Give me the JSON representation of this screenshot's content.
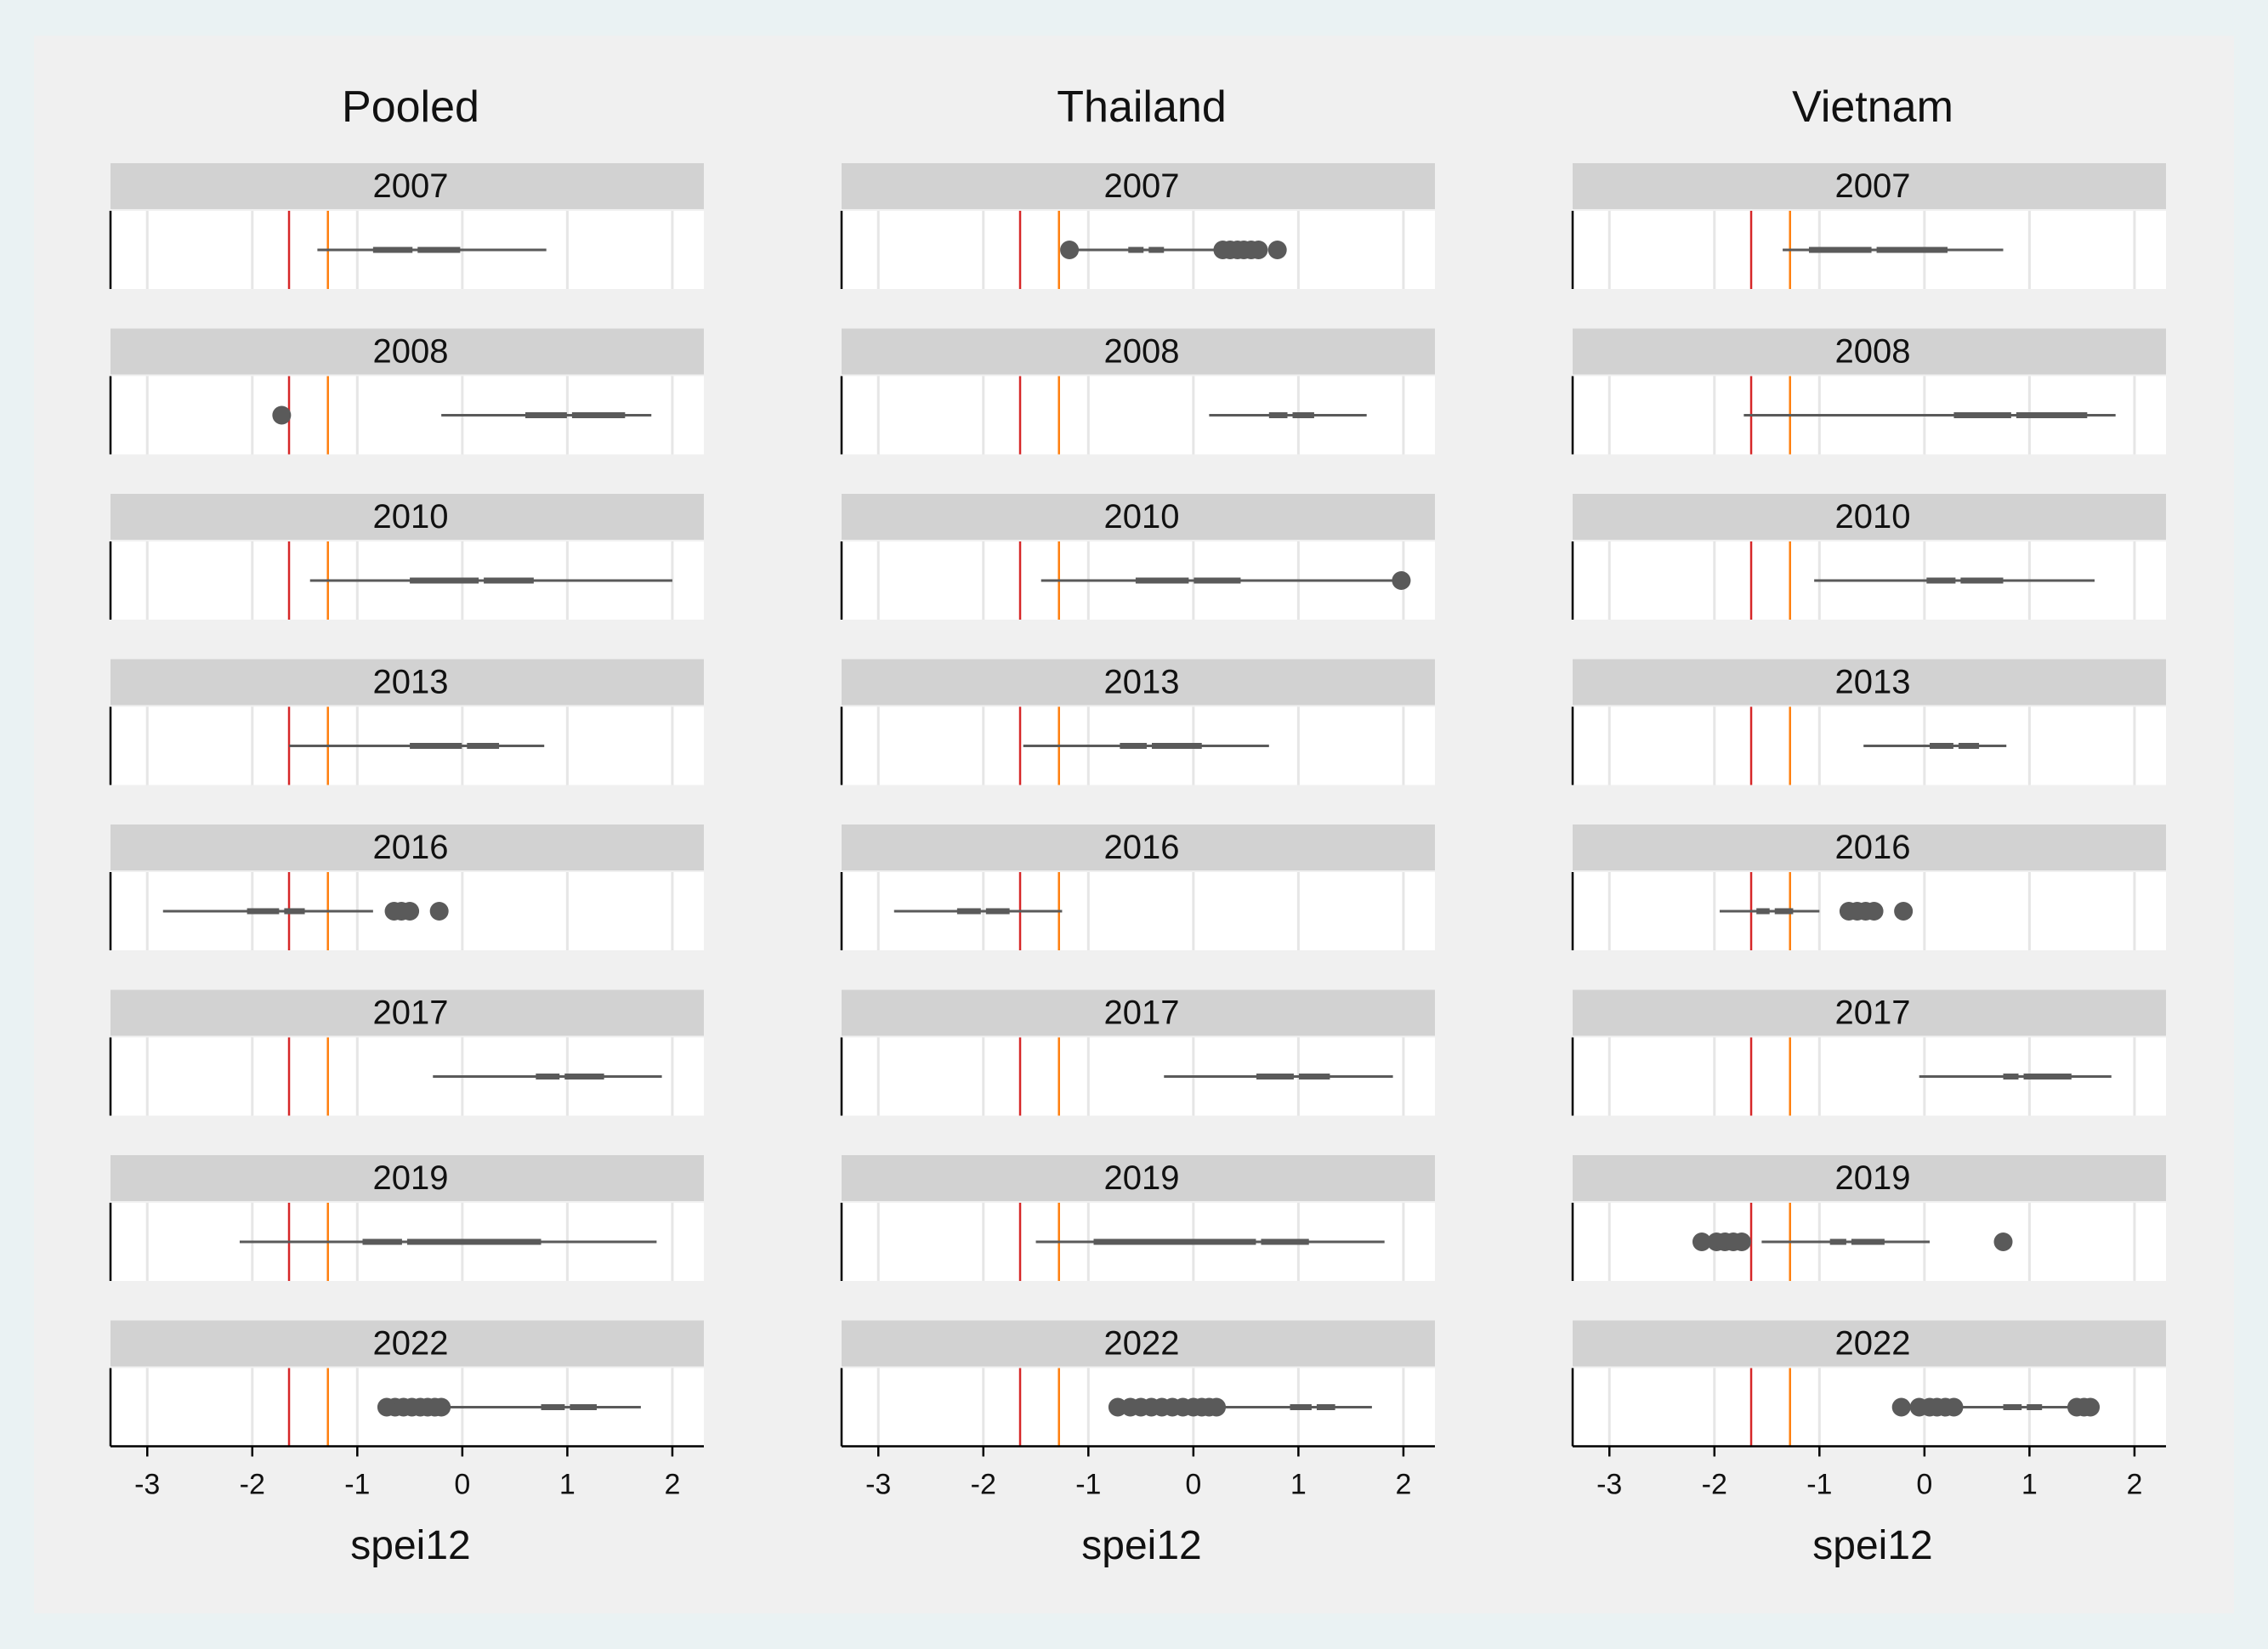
{
  "chart_data": {
    "type": "boxplot",
    "layout": "3 columns by 8 rows of horizontal box plots",
    "xlabel": "spei12",
    "xlim": [
      -3.35,
      2.3
    ],
    "xticks": [
      -3,
      -2,
      -1,
      0,
      1,
      2
    ],
    "reference_lines": [
      {
        "x": -1.65,
        "color": "#d62728"
      },
      {
        "x": -1.28,
        "color": "#ff7f0e"
      }
    ],
    "colors": {
      "box": "#5a5a5a",
      "strip": "#d2d2d2",
      "grid": "#e6e6e6",
      "plot_bg": "#ffffff",
      "frame_bg": "#f0f0f0",
      "outer_bg": "#eaf2f3"
    },
    "years": [
      "2007",
      "2008",
      "2010",
      "2013",
      "2016",
      "2017",
      "2019",
      "2022"
    ],
    "panels": [
      {
        "title": "Pooled",
        "rows": [
          {
            "year": "2007",
            "wmin": -1.38,
            "q1": -0.85,
            "med": -0.45,
            "q3": -0.02,
            "wmax": 0.8,
            "outliers": []
          },
          {
            "year": "2008",
            "wmin": -0.2,
            "q1": 0.6,
            "med": 1.02,
            "q3": 1.55,
            "wmax": 1.8,
            "outliers": [
              -1.72
            ]
          },
          {
            "year": "2010",
            "wmin": -1.45,
            "q1": -0.5,
            "med": 0.18,
            "q3": 0.68,
            "wmax": 2.0,
            "outliers": []
          },
          {
            "year": "2013",
            "wmin": -1.65,
            "q1": -0.5,
            "med": 0.02,
            "q3": 0.35,
            "wmax": 0.78,
            "outliers": []
          },
          {
            "year": "2016",
            "wmin": -2.85,
            "q1": -2.05,
            "med": -1.72,
            "q3": -1.5,
            "wmax": -0.85,
            "outliers": [
              -0.65,
              -0.58,
              -0.5,
              -0.22
            ]
          },
          {
            "year": "2017",
            "wmin": -0.28,
            "q1": 0.7,
            "med": 0.95,
            "q3": 1.35,
            "wmax": 1.9,
            "outliers": []
          },
          {
            "year": "2019",
            "wmin": -2.12,
            "q1": -0.95,
            "med": -0.55,
            "q3": 0.75,
            "wmax": 1.85,
            "outliers": []
          },
          {
            "year": "2022",
            "wmin": -0.15,
            "q1": 0.75,
            "med": 1.0,
            "q3": 1.28,
            "wmax": 1.7,
            "outliers": [
              -0.72,
              -0.64,
              -0.56,
              -0.48,
              -0.4,
              -0.33,
              -0.26,
              -0.2
            ]
          }
        ]
      },
      {
        "title": "Thailand",
        "rows": [
          {
            "year": "2007",
            "wmin": -1.2,
            "q1": -0.62,
            "med": -0.45,
            "q3": -0.28,
            "wmax": 0.2,
            "outliers": [
              -1.18,
              0.28,
              0.35,
              0.42,
              0.48,
              0.55,
              0.62,
              0.8
            ]
          },
          {
            "year": "2008",
            "wmin": 0.15,
            "q1": 0.72,
            "med": 0.92,
            "q3": 1.15,
            "wmax": 1.65,
            "outliers": []
          },
          {
            "year": "2010",
            "wmin": -1.45,
            "q1": -0.55,
            "med": -0.02,
            "q3": 0.45,
            "wmax": 1.95,
            "outliers": [
              1.98
            ]
          },
          {
            "year": "2013",
            "wmin": -1.62,
            "q1": -0.7,
            "med": -0.42,
            "q3": 0.08,
            "wmax": 0.72,
            "outliers": []
          },
          {
            "year": "2016",
            "wmin": -2.85,
            "q1": -2.25,
            "med": -2.0,
            "q3": -1.75,
            "wmax": -1.25,
            "outliers": []
          },
          {
            "year": "2017",
            "wmin": -0.28,
            "q1": 0.6,
            "med": 0.98,
            "q3": 1.3,
            "wmax": 1.9,
            "outliers": []
          },
          {
            "year": "2019",
            "wmin": -1.5,
            "q1": -0.95,
            "med": 0.62,
            "q3": 1.1,
            "wmax": 1.82,
            "outliers": []
          },
          {
            "year": "2022",
            "wmin": 0.3,
            "q1": 0.92,
            "med": 1.15,
            "q3": 1.35,
            "wmax": 1.7,
            "outliers": [
              -0.72,
              -0.6,
              -0.5,
              -0.4,
              -0.3,
              -0.2,
              -0.1,
              0.0,
              0.08,
              0.15,
              0.22
            ]
          }
        ]
      },
      {
        "title": "Vietnam",
        "rows": [
          {
            "year": "2007",
            "wmin": -1.35,
            "q1": -1.1,
            "med": -0.48,
            "q3": 0.22,
            "wmax": 0.75,
            "outliers": []
          },
          {
            "year": "2008",
            "wmin": -1.72,
            "q1": 0.28,
            "med": 0.85,
            "q3": 1.55,
            "wmax": 1.82,
            "outliers": []
          },
          {
            "year": "2010",
            "wmin": -1.05,
            "q1": 0.02,
            "med": 0.32,
            "q3": 0.75,
            "wmax": 1.62,
            "outliers": []
          },
          {
            "year": "2013",
            "wmin": -0.58,
            "q1": 0.05,
            "med": 0.3,
            "q3": 0.52,
            "wmax": 0.78,
            "outliers": []
          },
          {
            "year": "2016",
            "wmin": -1.95,
            "q1": -1.6,
            "med": -1.45,
            "q3": -1.25,
            "wmax": -1.0,
            "outliers": [
              -0.72,
              -0.64,
              -0.56,
              -0.48,
              -0.2
            ]
          },
          {
            "year": "2017",
            "wmin": -0.05,
            "q1": 0.75,
            "med": 0.92,
            "q3": 1.4,
            "wmax": 1.78,
            "outliers": []
          },
          {
            "year": "2019",
            "wmin": -1.55,
            "q1": -0.9,
            "med": -0.72,
            "q3": -0.38,
            "wmax": 0.05,
            "outliers": [
              -2.12,
              -1.98,
              -1.9,
              -1.82,
              -1.74,
              0.75
            ]
          },
          {
            "year": "2022",
            "wmin": 0.35,
            "q1": 0.75,
            "med": 0.95,
            "q3": 1.12,
            "wmax": 1.38,
            "outliers": [
              -0.22,
              -0.05,
              0.05,
              0.12,
              0.2,
              0.28,
              1.45,
              1.52,
              1.58
            ]
          }
        ]
      }
    ]
  }
}
